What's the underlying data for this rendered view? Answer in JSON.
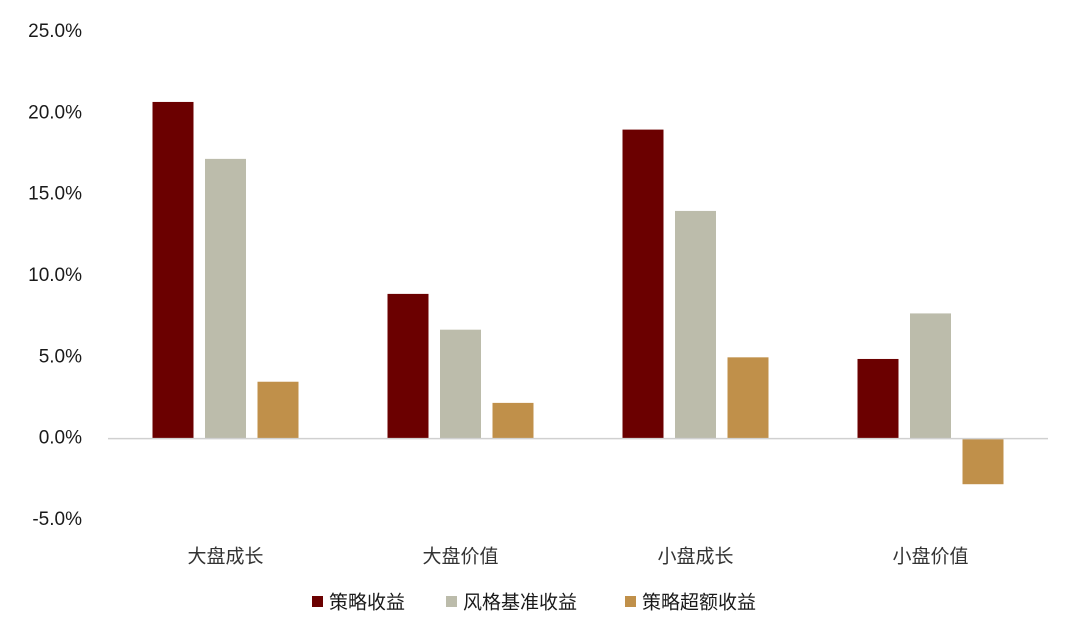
{
  "chart_data": {
    "type": "bar",
    "title": "",
    "xlabel": "",
    "ylabel": "",
    "categories": [
      "大盘成长",
      "大盘价值",
      "小盘成长",
      "小盘价值"
    ],
    "series": [
      {
        "name": "策略收益",
        "color": "#6b0000",
        "values": [
          20.7,
          8.9,
          19.0,
          4.9
        ]
      },
      {
        "name": "风格基准收益",
        "color": "#bcbcab",
        "values": [
          17.2,
          6.7,
          14.0,
          7.7
        ]
      },
      {
        "name": "策略超额收益",
        "color": "#c0904a",
        "values": [
          3.5,
          2.2,
          5.0,
          -2.8
        ]
      }
    ],
    "ylim": [
      -5,
      25
    ],
    "yticks": [
      -5,
      0,
      5,
      10,
      15,
      20,
      25
    ],
    "ytick_labels": [
      "-5.0%",
      "0.0%",
      "5.0%",
      "10.0%",
      "15.0%",
      "20.0%",
      "25.0%"
    ],
    "grid": false,
    "legend_position": "bottom"
  }
}
